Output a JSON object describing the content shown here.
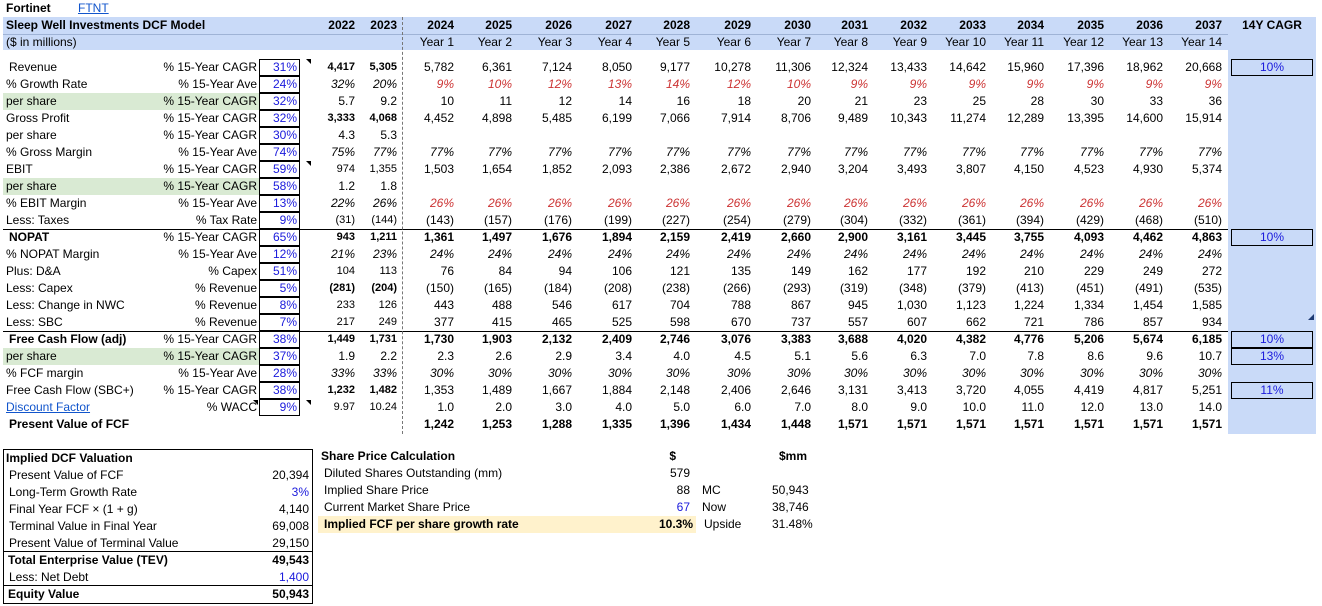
{
  "colors": {
    "header_band": "#c9daf8",
    "highlight_green": "#d9ead3",
    "highlight_yellow": "#fff2cc",
    "input_blue": "#1a1adc",
    "forecast_red": "#cc3333"
  },
  "header": {
    "company": "Fortinet",
    "ticker": "FTNT",
    "model_title": "Sleep Well Investments DCF Model",
    "units": "($ in millions)",
    "cagr_header": "14Y CAGR"
  },
  "years": [
    "2022",
    "2023",
    "2024",
    "2025",
    "2026",
    "2027",
    "2028",
    "2029",
    "2030",
    "2031",
    "2032",
    "2033",
    "2034",
    "2035",
    "2036",
    "2037"
  ],
  "year_labels": [
    "Year 1",
    "Year 2",
    "Year 3",
    "Year 4",
    "Year 5",
    "Year 6",
    "Year 7",
    "Year 8",
    "Year 9",
    "Year 10",
    "Year 11",
    "Year 12",
    "Year 13",
    "Year 14"
  ],
  "rows": [
    {
      "label": "Revenue",
      "metric": "% 15-Year CAGR",
      "stat": "31%",
      "hist": [
        "4,417",
        "5,305"
      ],
      "fc": [
        "5,782",
        "6,361",
        "7,124",
        "8,050",
        "9,177",
        "10,278",
        "11,306",
        "12,324",
        "13,433",
        "14,642",
        "15,960",
        "17,396",
        "18,962",
        "20,668"
      ],
      "cagr": "10%"
    },
    {
      "label": "% Growth Rate",
      "metric": "% 15-Year Ave",
      "stat": "24%",
      "hist": [
        "32%",
        "20%"
      ],
      "fc": [
        "9%",
        "10%",
        "12%",
        "13%",
        "14%",
        "12%",
        "10%",
        "9%",
        "9%",
        "9%",
        "9%",
        "9%",
        "9%",
        "9%"
      ]
    },
    {
      "label": "per share",
      "metric": "% 15-Year CAGR",
      "stat": "32%",
      "hist": [
        "5.7",
        "9.2"
      ],
      "fc": [
        "10",
        "11",
        "12",
        "14",
        "16",
        "18",
        "20",
        "21",
        "23",
        "25",
        "28",
        "30",
        "33",
        "36"
      ]
    },
    {
      "label": "Gross Profit",
      "metric": "% 15-Year CAGR",
      "stat": "32%",
      "hist": [
        "3,333",
        "4,068"
      ],
      "fc": [
        "4,452",
        "4,898",
        "5,485",
        "6,199",
        "7,066",
        "7,914",
        "8,706",
        "9,489",
        "10,343",
        "11,274",
        "12,289",
        "13,395",
        "14,600",
        "15,914"
      ]
    },
    {
      "label": "per share",
      "metric": "% 15-Year CAGR",
      "stat": "30%",
      "hist": [
        "4.3",
        "5.3"
      ],
      "fc": []
    },
    {
      "label": "% Gross Margin",
      "metric": "% 15-Year Ave",
      "stat": "74%",
      "hist": [
        "75%",
        "77%"
      ],
      "fc": [
        "77%",
        "77%",
        "77%",
        "77%",
        "77%",
        "77%",
        "77%",
        "77%",
        "77%",
        "77%",
        "77%",
        "77%",
        "77%",
        "77%"
      ]
    },
    {
      "label": "EBIT",
      "metric": "% 15-Year CAGR",
      "stat": "59%",
      "hist": [
        "974",
        "1,355"
      ],
      "fc": [
        "1,503",
        "1,654",
        "1,852",
        "2,093",
        "2,386",
        "2,672",
        "2,940",
        "3,204",
        "3,493",
        "3,807",
        "4,150",
        "4,523",
        "4,930",
        "5,374"
      ]
    },
    {
      "label": "per share",
      "metric": "% 15-Year CAGR",
      "stat": "58%",
      "hist": [
        "1.2",
        "1.8"
      ],
      "fc": []
    },
    {
      "label": "% EBIT Margin",
      "metric": "% 15-Year Ave",
      "stat": "13%",
      "hist": [
        "22%",
        "26%"
      ],
      "fc": [
        "26%",
        "26%",
        "26%",
        "26%",
        "26%",
        "26%",
        "26%",
        "26%",
        "26%",
        "26%",
        "26%",
        "26%",
        "26%",
        "26%"
      ]
    },
    {
      "label": "Less: Taxes",
      "metric": "% Tax Rate",
      "stat": "9%",
      "hist": [
        "(31)",
        "(144)"
      ],
      "fc": [
        "(143)",
        "(157)",
        "(176)",
        "(199)",
        "(227)",
        "(254)",
        "(279)",
        "(304)",
        "(332)",
        "(361)",
        "(394)",
        "(429)",
        "(468)",
        "(510)"
      ]
    },
    {
      "label": "NOPAT",
      "metric": "% 15-Year CAGR",
      "stat": "65%",
      "hist": [
        "943",
        "1,211"
      ],
      "fc": [
        "1,361",
        "1,497",
        "1,676",
        "1,894",
        "2,159",
        "2,419",
        "2,660",
        "2,900",
        "3,161",
        "3,445",
        "3,755",
        "4,093",
        "4,462",
        "4,863"
      ],
      "cagr": "10%"
    },
    {
      "label": "% NOPAT Margin",
      "metric": "% 15-Year Ave",
      "stat": "12%",
      "hist": [
        "21%",
        "23%"
      ],
      "fc": [
        "24%",
        "24%",
        "24%",
        "24%",
        "24%",
        "24%",
        "24%",
        "24%",
        "24%",
        "24%",
        "24%",
        "24%",
        "24%",
        "24%"
      ]
    },
    {
      "label": "Plus: D&A",
      "metric": "% Capex",
      "stat": "51%",
      "hist": [
        "104",
        "113"
      ],
      "fc": [
        "76",
        "84",
        "94",
        "106",
        "121",
        "135",
        "149",
        "162",
        "177",
        "192",
        "210",
        "229",
        "249",
        "272"
      ]
    },
    {
      "label": "Less: Capex",
      "metric": "% Revenue",
      "stat": "5%",
      "hist": [
        "(281)",
        "(204)"
      ],
      "fc": [
        "(150)",
        "(165)",
        "(184)",
        "(208)",
        "(238)",
        "(266)",
        "(293)",
        "(319)",
        "(348)",
        "(379)",
        "(413)",
        "(451)",
        "(491)",
        "(535)"
      ]
    },
    {
      "label": "Less: Change in NWC",
      "metric": "% Revenue",
      "stat": "8%",
      "hist": [
        "233",
        "126"
      ],
      "fc": [
        "443",
        "488",
        "546",
        "617",
        "704",
        "788",
        "867",
        "945",
        "1,030",
        "1,123",
        "1,224",
        "1,334",
        "1,454",
        "1,585"
      ]
    },
    {
      "label": "Less: SBC",
      "metric": "% Revenue",
      "stat": "7%",
      "hist": [
        "217",
        "249"
      ],
      "fc": [
        "377",
        "415",
        "465",
        "525",
        "598",
        "670",
        "737",
        "557",
        "607",
        "662",
        "721",
        "786",
        "857",
        "934"
      ]
    },
    {
      "label": "Free Cash Flow (adj)",
      "metric": "% 15-Year CAGR",
      "stat": "38%",
      "hist": [
        "1,449",
        "1,731"
      ],
      "fc": [
        "1,730",
        "1,903",
        "2,132",
        "2,409",
        "2,746",
        "3,076",
        "3,383",
        "3,688",
        "4,020",
        "4,382",
        "4,776",
        "5,206",
        "5,674",
        "6,185"
      ],
      "cagr": "10%"
    },
    {
      "label": "per share",
      "metric": "% 15-Year CAGR",
      "stat": "37%",
      "hist": [
        "1.9",
        "2.2"
      ],
      "fc": [
        "2.3",
        "2.6",
        "2.9",
        "3.4",
        "4.0",
        "4.5",
        "5.1",
        "5.6",
        "6.3",
        "7.0",
        "7.8",
        "8.6",
        "9.6",
        "10.7"
      ],
      "cagr": "13%"
    },
    {
      "label": "% FCF margin",
      "metric": "% 15-Year Ave",
      "stat": "28%",
      "hist": [
        "33%",
        "33%"
      ],
      "fc": [
        "30%",
        "30%",
        "30%",
        "30%",
        "30%",
        "30%",
        "30%",
        "30%",
        "30%",
        "30%",
        "30%",
        "30%",
        "30%",
        "30%"
      ]
    },
    {
      "label": "Free Cash Flow (SBC+)",
      "metric": "% 15-Year CAGR",
      "stat": "38%",
      "hist": [
        "1,232",
        "1,482"
      ],
      "fc": [
        "1,353",
        "1,489",
        "1,667",
        "1,884",
        "2,148",
        "2,406",
        "2,646",
        "3,131",
        "3,413",
        "3,720",
        "4,055",
        "4,419",
        "4,817",
        "5,251"
      ],
      "cagr": "11%"
    },
    {
      "label": "Discount Factor",
      "metric": "% WACC",
      "stat": "9%",
      "hist": [
        "9.97",
        "10.24"
      ],
      "fc": [
        "1.0",
        "2.0",
        "3.0",
        "4.0",
        "5.0",
        "6.0",
        "7.0",
        "8.0",
        "9.0",
        "10.0",
        "11.0",
        "12.0",
        "13.0",
        "14.0"
      ]
    },
    {
      "label": "Present Value of FCF",
      "metric": "",
      "stat": "",
      "hist": [
        "",
        ""
      ],
      "fc": [
        "1,242",
        "1,253",
        "1,288",
        "1,335",
        "1,396",
        "1,434",
        "1,448",
        "1,571",
        "1,571",
        "1,571",
        "1,571",
        "1,571",
        "1,571",
        "1,571"
      ]
    }
  ],
  "valuation": {
    "title": "Implied DCF Valuation",
    "rows": [
      {
        "label": "Present Value of FCF",
        "value": "20,394"
      },
      {
        "label": "Long-Term Growth Rate",
        "value": "3%"
      },
      {
        "label": "Final Year FCF × (1 + g)",
        "value": "4,140"
      },
      {
        "label": "Terminal Value in Final Year",
        "value": "69,008"
      },
      {
        "label": "Present Value of Terminal Value",
        "value": "29,150"
      },
      {
        "label": "Total Enterprise Value (TEV)",
        "value": "49,543"
      },
      {
        "label": "Less: Net Debt",
        "value": "1,400"
      },
      {
        "label": "Equity Value",
        "value": "50,943"
      }
    ]
  },
  "share_price": {
    "title": "Share Price Calculation",
    "col_dollar": "$",
    "col_mm": "$mm",
    "shares_label": "Diluted Shares Outstanding (mm)",
    "shares_value": "579",
    "implied_label": "Implied Share Price",
    "implied_value": "88",
    "mc_label": "MC",
    "mc_value": "50,943",
    "current_label": "Current Market Share Price",
    "current_value": "67",
    "now_label": "Now",
    "now_value": "38,746",
    "growth_label": "Implied FCF per share growth rate",
    "growth_value": "10.3%",
    "upside_label": "Upside",
    "upside_value": "31.48%"
  }
}
